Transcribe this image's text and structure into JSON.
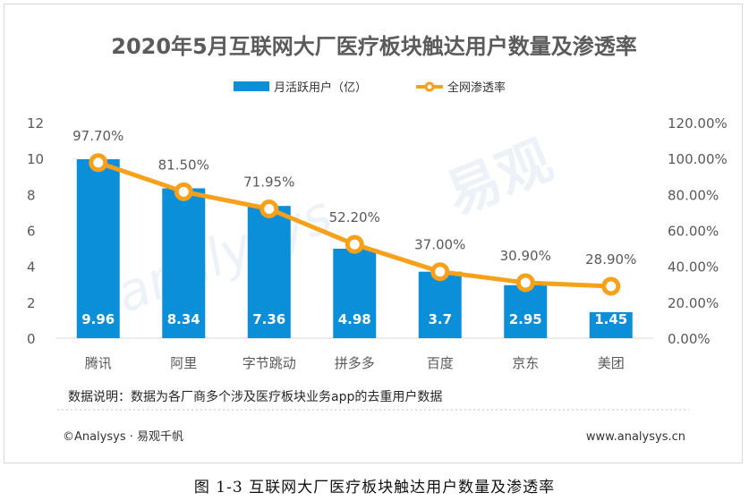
{
  "chart_data": {
    "type": "bar",
    "title": "2020年5月互联网大厂医疗板块触达用户数量及渗透率",
    "categories": [
      "腾讯",
      "阿里",
      "字节跳动",
      "拼多多",
      "百度",
      "京东",
      "美团"
    ],
    "series": [
      {
        "name": "月活跃用户（亿）",
        "type": "bar",
        "axis": "left",
        "values": [
          9.96,
          8.34,
          7.36,
          4.98,
          3.7,
          2.95,
          1.45
        ],
        "labels": [
          "9.96",
          "8.34",
          "7.36",
          "4.98",
          "3.7",
          "2.95",
          "1.45"
        ]
      },
      {
        "name": "全网渗透率",
        "type": "line",
        "axis": "right",
        "values": [
          97.7,
          81.5,
          71.95,
          52.2,
          37.0,
          30.9,
          28.9
        ],
        "labels": [
          "97.70%",
          "81.50%",
          "71.95%",
          "52.20%",
          "37.00%",
          "30.90%",
          "28.90%"
        ]
      }
    ],
    "ylim_left": [
      0,
      12
    ],
    "ylim_right": [
      0,
      120
    ],
    "yticks_left": [
      "0",
      "2",
      "4",
      "6",
      "8",
      "10",
      "12"
    ],
    "yticks_right": [
      "0.00%",
      "20.00%",
      "40.00%",
      "60.00%",
      "80.00%",
      "100.00%",
      "120.00%"
    ],
    "legend_position": "top-center",
    "grid": false
  },
  "note": "数据说明：数据为各厂商多个涉及医疗板块业务app的去重用户数据",
  "footer": {
    "left": "©Analysys · 易观千帆",
    "right": "www.analysys.cn"
  },
  "caption": "图 1-3 互联网大厂医疗板块触达用户数量及渗透率",
  "colors": {
    "bar": "#0b8fd9",
    "line": "#f7a11a",
    "marker_fill": "#ffffff"
  }
}
